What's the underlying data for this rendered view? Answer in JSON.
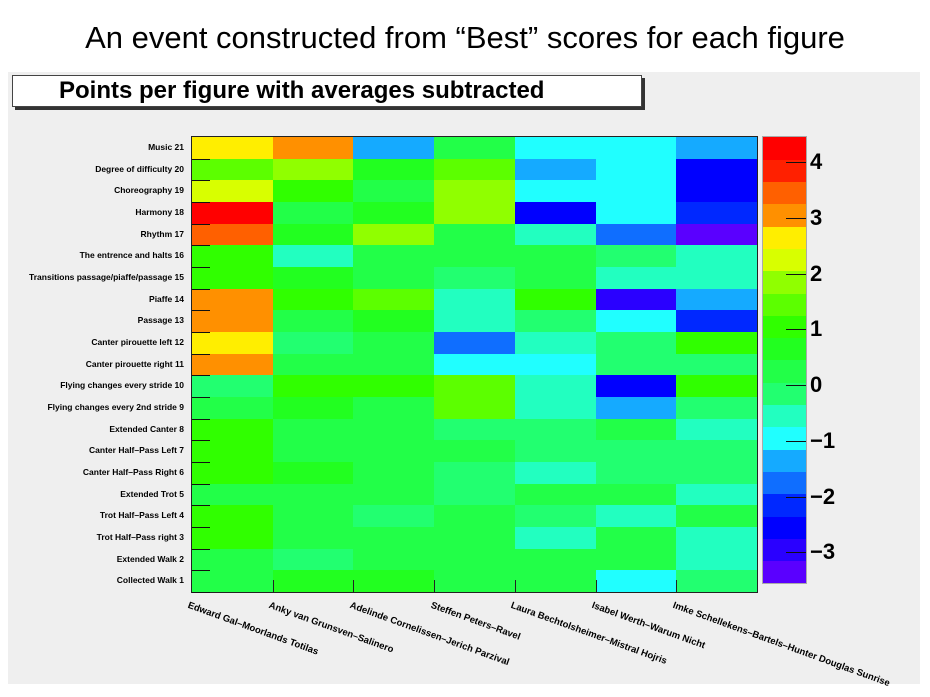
{
  "slide_title": "An event constructed from “Best” scores for each figure",
  "chart_data": {
    "type": "heatmap",
    "title": "Points per figure with averages subtracted",
    "x_categories": [
      "Edward Gal–Moorlands Totilas",
      "Anky van Grunsven–Salinero",
      "Adelinde Cornelissen–Jerich Parzival",
      "Steffen Peters–Ravel",
      "Laura Bechtolsheimer–Mistral Hojris",
      "Isabel Werth–Warum Nicht",
      "Imke Schellekens–Bartels–Hunter Douglas Sunrise"
    ],
    "y_categories_top_to_bottom": [
      "Music 21",
      "Degree of difficulty 20",
      "Choreography 19",
      "Harmony 18",
      "Rhythm 17",
      "The entrence and halts 16",
      "Transitions passage/piaffe/passage 15",
      "Piaffe 14",
      "Passage 13",
      "Canter pirouette left 12",
      "Canter pirouette right 11",
      "Flying changes every stride 10",
      "Flying changes every 2nd stride 9",
      "Extended Canter 8",
      "Canter Half–Pass Left 7",
      "Canter Half–Pass Right 6",
      "Extended Trot 5",
      "Trot Half–Pass Left 4",
      "Trot Half–Pass right 3",
      "Extended Walk 2",
      "Collected Walk 1"
    ],
    "values": [
      [
        2.6,
        3.0,
        -1.4,
        0.3,
        -1.0,
        -1.0,
        -1.4
      ],
      [
        1.4,
        1.8,
        0.7,
        1.4,
        -1.4,
        -1.0,
        -2.6
      ],
      [
        2.2,
        0.9,
        0.3,
        1.8,
        -1.0,
        -1.0,
        -2.6
      ],
      [
        4.2,
        0.3,
        0.7,
        1.8,
        -2.6,
        -1.0,
        -2.2
      ],
      [
        3.4,
        0.7,
        1.8,
        0.3,
        -0.5,
        -1.8,
        -3.4
      ],
      [
        0.9,
        -0.5,
        0.3,
        0.3,
        0.3,
        0.0,
        -0.5
      ],
      [
        0.9,
        0.7,
        0.3,
        0.0,
        0.3,
        -0.5,
        -0.5
      ],
      [
        3.0,
        0.9,
        1.4,
        -0.5,
        1.0,
        -3.0,
        -1.4
      ],
      [
        3.0,
        0.3,
        0.7,
        -0.5,
        0.0,
        -1.0,
        -2.2
      ],
      [
        2.6,
        0.0,
        0.3,
        -1.8,
        -0.5,
        0.0,
        1.0
      ],
      [
        3.0,
        0.3,
        0.3,
        -1.0,
        -1.0,
        0.0,
        0.0
      ],
      [
        0.0,
        0.9,
        0.9,
        1.4,
        -0.5,
        -2.6,
        0.9
      ],
      [
        0.3,
        0.7,
        0.3,
        1.4,
        -0.5,
        -1.4,
        0.0
      ],
      [
        0.9,
        0.3,
        0.3,
        0.0,
        0.0,
        0.3,
        -0.5
      ],
      [
        0.9,
        0.3,
        0.3,
        0.3,
        0.0,
        0.0,
        0.0
      ],
      [
        0.9,
        0.7,
        0.3,
        0.0,
        -0.5,
        0.0,
        0.0
      ],
      [
        0.3,
        0.3,
        0.3,
        0.0,
        0.3,
        0.3,
        -0.5
      ],
      [
        0.9,
        0.3,
        0.0,
        0.3,
        0.0,
        -0.5,
        0.3
      ],
      [
        0.9,
        0.3,
        0.3,
        0.3,
        -0.5,
        0.3,
        -0.5
      ],
      [
        0.3,
        0.0,
        0.3,
        0.3,
        0.3,
        0.3,
        -0.5
      ],
      [
        0.3,
        0.7,
        0.7,
        0.3,
        0.3,
        -1.0,
        0.0
      ]
    ],
    "zlim": [
      -3.55,
      4.45
    ],
    "colorbar_ticks": [
      -3,
      -2,
      -1,
      0,
      1,
      2,
      3,
      4
    ],
    "colorbar_tick_labels": [
      "−3",
      "−2",
      "−1",
      "0",
      "1",
      "2",
      "3",
      "4"
    ],
    "palette_bottom_to_top": [
      "#5a00ff",
      "#2a00ff",
      "#0000ff",
      "#0028ff",
      "#0f6eff",
      "#15aaff",
      "#20ffff",
      "#22ffc0",
      "#22ff70",
      "#22ff48",
      "#22ff20",
      "#30ff00",
      "#5cff00",
      "#90ff00",
      "#d8ff00",
      "#ffee00",
      "#ff9000",
      "#ff6000",
      "#ff2000",
      "#ff0000"
    ]
  }
}
